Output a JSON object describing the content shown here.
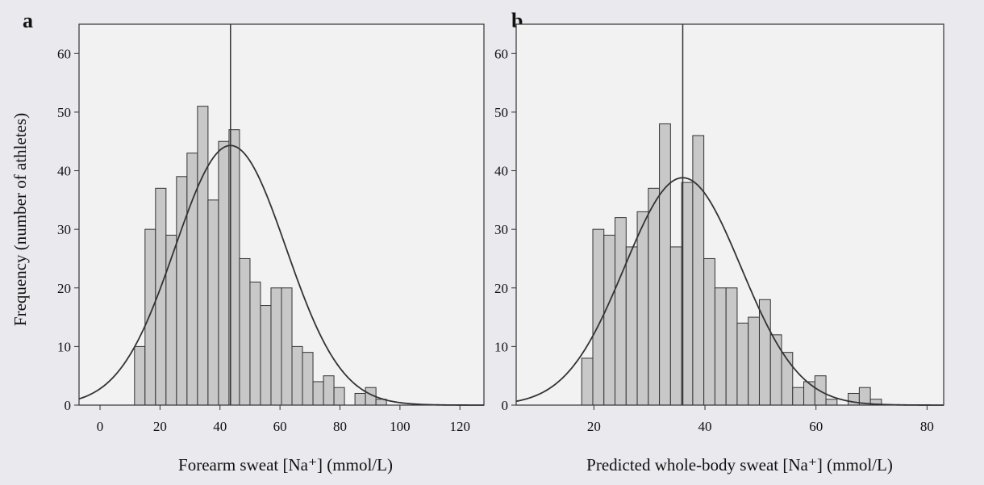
{
  "figure": {
    "background_color": "#e9e9ee",
    "plot_background": "#f2f2f2",
    "bar_fill": "#c8c8c8",
    "bar_stroke": "#333333",
    "curve_color": "#333333",
    "ylabel": "Frequency (number of athletes)"
  },
  "chart_data": [
    {
      "type": "bar",
      "panel": "a",
      "title": "",
      "xlabel": "Forearm sweat [Na⁺] (mmol/L)",
      "ylabel": "Frequency (number of athletes)",
      "xlim": [
        -7,
        128
      ],
      "ylim": [
        0,
        65
      ],
      "xticks": [
        0,
        20,
        40,
        60,
        80,
        100,
        120
      ],
      "yticks": [
        0,
        10,
        20,
        30,
        40,
        50,
        60
      ],
      "bin_width": 3.5,
      "bin_start": 11.5,
      "values": [
        10,
        30,
        37,
        29,
        39,
        43,
        51,
        35,
        45,
        47,
        25,
        21,
        17,
        20,
        20,
        10,
        9,
        4,
        5,
        3,
        0,
        2,
        3,
        1
      ],
      "mean_line": 43.5,
      "normal_curve": {
        "mean": 43.5,
        "sd": 18.5,
        "peak": 44.3
      },
      "grid": false,
      "legend": "none"
    },
    {
      "type": "bar",
      "panel": "b",
      "title": "",
      "xlabel": "Predicted whole-body sweat [Na⁺] (mmol/L)",
      "ylabel": "",
      "xlim": [
        6,
        83
      ],
      "ylim": [
        0,
        65
      ],
      "xticks": [
        20,
        40,
        60,
        80
      ],
      "yticks": [
        0,
        10,
        20,
        30,
        40,
        50,
        60
      ],
      "bin_width": 2,
      "bin_start": 17.8,
      "values": [
        8,
        30,
        29,
        32,
        27,
        33,
        37,
        48,
        27,
        38,
        46,
        25,
        20,
        20,
        14,
        15,
        18,
        12,
        9,
        3,
        4,
        5,
        1,
        0,
        2,
        3,
        1
      ],
      "mean_line": 36,
      "normal_curve": {
        "mean": 36,
        "sd": 10.5,
        "peak": 38.8
      },
      "grid": false,
      "legend": "none"
    }
  ]
}
